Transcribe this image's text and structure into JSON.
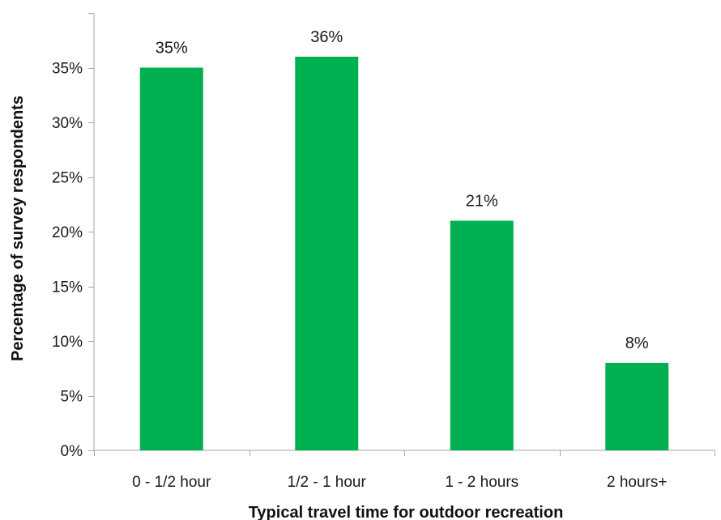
{
  "chart_data": {
    "type": "bar",
    "categories": [
      "0 - 1/2 hour",
      "1/2 - 1 hour",
      "1 - 2 hours",
      "2 hours+"
    ],
    "values": [
      35,
      36,
      21,
      8
    ],
    "data_labels": [
      "35%",
      "36%",
      "21%",
      "8%"
    ],
    "title": "",
    "xlabel": "Typical travel time for outdoor recreation",
    "ylabel": "Percentage of survey respondents",
    "ylim": [
      0,
      40
    ],
    "y_ticks": [
      0,
      5,
      10,
      15,
      20,
      25,
      30,
      35
    ],
    "y_tick_labels": [
      "0%",
      "5%",
      "10%",
      "15%",
      "20%",
      "25%",
      "30%",
      "35%"
    ],
    "grid": false,
    "legend": "none",
    "bar_color": "#00b050",
    "axis_color": "#a6a6a6"
  }
}
